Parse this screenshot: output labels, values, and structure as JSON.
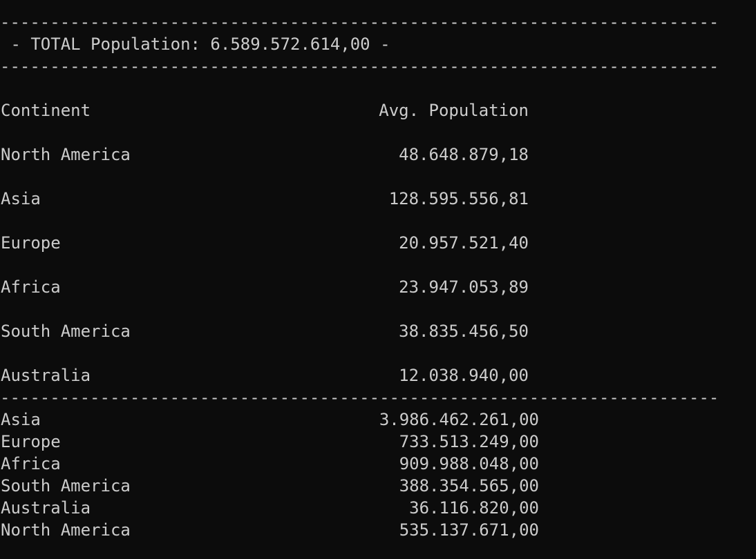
{
  "separator": "------------------------------------------------------------------------",
  "total_line": " - TOTAL Population: 6.589.572.614,00 -",
  "avg_table": {
    "header": {
      "continent": "Continent",
      "value": "Avg. Population"
    },
    "rows": [
      {
        "continent": "North America",
        "value": "48.648.879,18"
      },
      {
        "continent": "Asia",
        "value": "128.595.556,81"
      },
      {
        "continent": "Europe",
        "value": "20.957.521,40"
      },
      {
        "continent": "Africa",
        "value": "23.947.053,89"
      },
      {
        "continent": "South America",
        "value": "38.835.456,50"
      },
      {
        "continent": "Australia",
        "value": "12.038.940,00"
      }
    ]
  },
  "totals_table": {
    "rows": [
      {
        "continent": "Asia",
        "value": "3.986.462.261,00"
      },
      {
        "continent": "Europe",
        "value": "733.513.249,00"
      },
      {
        "continent": "Africa",
        "value": "909.988.048,00"
      },
      {
        "continent": "South America",
        "value": "388.354.565,00"
      },
      {
        "continent": "Australia",
        "value": "36.116.820,00"
      },
      {
        "continent": "North America",
        "value": "535.137.671,00"
      }
    ]
  }
}
